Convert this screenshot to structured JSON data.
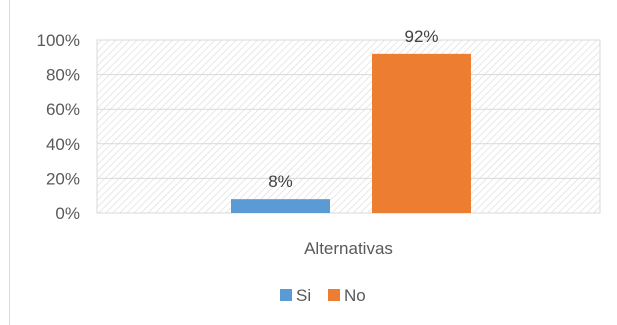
{
  "chart_data": {
    "type": "bar",
    "categories": [
      "Alternativas"
    ],
    "series": [
      {
        "name": "Si",
        "values": [
          8
        ],
        "label": "8%",
        "color": "#5b9bd5"
      },
      {
        "name": "No",
        "values": [
          92
        ],
        "label": "92%",
        "color": "#ed7d31"
      }
    ],
    "ylim": [
      0,
      100
    ],
    "yticks": [
      0,
      20,
      40,
      60,
      80,
      100
    ],
    "ytick_labels": [
      "0%",
      "20%",
      "40%",
      "60%",
      "80%",
      "100%"
    ],
    "title": "",
    "xlabel": "",
    "ylabel": "",
    "grid": true,
    "plot_background": "hatched",
    "legend_position": "bottom"
  }
}
